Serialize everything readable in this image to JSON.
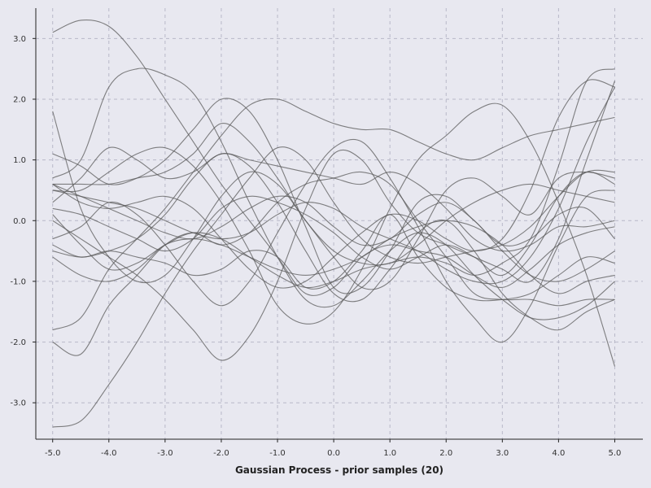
{
  "chart_data": {
    "type": "line",
    "title": "",
    "xlabel": "Gaussian Process - prior samples (20)",
    "ylabel": "",
    "xlim": [
      -5.3,
      5.5
    ],
    "ylim": [
      -3.6,
      3.5
    ],
    "x_ticks": [
      -5,
      -4,
      -3,
      -2,
      -1,
      0,
      1,
      2,
      3,
      4,
      5
    ],
    "x_tick_labels": [
      "-5.0",
      "-4.0",
      "-3.0",
      "-2.0",
      "-1.0",
      "0.0",
      "1.0",
      "2.0",
      "3.0",
      "4.0",
      "5.0"
    ],
    "y_ticks": [
      -3,
      -2,
      -1,
      0,
      1,
      2,
      3
    ],
    "y_tick_labels": [
      "-3.0",
      "-2.0",
      "-1.0",
      "0.0",
      "1.0",
      "2.0",
      "3.0"
    ],
    "grid": true,
    "legend": "none",
    "line_color": "#5a5a5a",
    "background": "#e8e8f0",
    "x": [
      -5,
      -4.5,
      -4,
      -3.5,
      -3,
      -2.5,
      -2,
      -1.5,
      -1,
      -0.5,
      0,
      0.5,
      1,
      1.5,
      2,
      2.5,
      3,
      3.5,
      4,
      4.5,
      5
    ],
    "series": [
      {
        "values": [
          3.1,
          3.3,
          3.2,
          2.7,
          2.0,
          1.3,
          0.6,
          0.0,
          -0.6,
          -1.2,
          -1.1,
          -0.6,
          -0.4,
          -0.5,
          -0.6,
          -0.9,
          -1.1,
          -0.8,
          -0.4,
          -0.2,
          -0.1
        ]
      },
      {
        "values": [
          -3.4,
          -3.3,
          -2.7,
          -2.0,
          -1.2,
          -0.5,
          0.1,
          0.7,
          1.2,
          1.0,
          0.3,
          -0.3,
          -0.6,
          -0.7,
          -0.6,
          -0.5,
          -0.4,
          -0.1,
          0.4,
          0.8,
          0.8
        ]
      },
      {
        "values": [
          -2.0,
          -2.2,
          -1.4,
          -0.9,
          -0.4,
          -0.2,
          -0.4,
          -0.2,
          0.3,
          0.6,
          0.7,
          0.8,
          0.6,
          0.0,
          -0.6,
          -1.2,
          -1.3,
          -1.3,
          -1.4,
          -1.3,
          -1.3
        ]
      },
      {
        "values": [
          -1.8,
          -1.6,
          -0.8,
          -0.3,
          0.2,
          0.8,
          1.4,
          1.9,
          2.0,
          1.8,
          1.6,
          1.5,
          1.5,
          1.3,
          1.1,
          1.0,
          1.2,
          1.4,
          1.5,
          1.6,
          1.7
        ]
      },
      {
        "values": [
          1.8,
          0.2,
          -0.6,
          -1.0,
          -0.9,
          -0.3,
          0.4,
          0.8,
          0.6,
          0.0,
          -0.6,
          -1.1,
          -1.0,
          -0.3,
          0.5,
          0.7,
          0.4,
          0.1,
          0.7,
          0.8,
          0.7
        ]
      },
      {
        "values": [
          0.7,
          1.0,
          2.2,
          2.5,
          2.4,
          2.1,
          1.3,
          0.3,
          -0.6,
          -1.3,
          -1.4,
          -1.0,
          -0.5,
          -0.2,
          -0.4,
          -0.9,
          -1.3,
          -1.6,
          -1.6,
          -1.4,
          -1.0
        ]
      },
      {
        "values": [
          1.1,
          0.9,
          0.6,
          0.7,
          1.0,
          1.5,
          2.0,
          1.8,
          1.0,
          -0.1,
          -1.1,
          -1.1,
          -0.5,
          0.3,
          0.4,
          0.0,
          -0.4,
          -0.3,
          0.1,
          0.2,
          -0.3
        ]
      },
      {
        "values": [
          0.5,
          0.5,
          0.8,
          1.1,
          1.2,
          0.9,
          0.3,
          -0.5,
          -1.4,
          -1.7,
          -1.5,
          -0.8,
          0.2,
          1.0,
          1.4,
          1.8,
          1.9,
          1.3,
          0.3,
          -0.9,
          -2.4
        ]
      },
      {
        "values": [
          0.0,
          -0.3,
          -0.6,
          -0.9,
          -1.3,
          -1.8,
          -2.3,
          -1.9,
          -1.0,
          0.2,
          1.1,
          1.0,
          0.3,
          -0.2,
          -0.4,
          -0.6,
          -0.8,
          -1.0,
          -0.3,
          1.0,
          2.3
        ]
      },
      {
        "values": [
          0.3,
          0.7,
          1.2,
          1.0,
          0.7,
          0.8,
          1.1,
          1.0,
          0.9,
          0.8,
          0.7,
          0.6,
          0.8,
          0.6,
          0.2,
          -0.3,
          -0.5,
          -0.4,
          -0.1,
          -0.1,
          0.0
        ]
      },
      {
        "values": [
          -0.4,
          -0.6,
          -0.5,
          -0.6,
          -0.7,
          -0.9,
          -0.8,
          -0.5,
          -0.6,
          -1.1,
          -1.0,
          -0.5,
          0.1,
          -0.6,
          -1.1,
          -1.3,
          -1.3,
          -1.2,
          -0.9,
          -0.6,
          -0.7
        ]
      },
      {
        "values": [
          0.6,
          0.6,
          0.6,
          0.7,
          0.8,
          1.1,
          1.6,
          1.3,
          0.7,
          0.0,
          -0.5,
          -0.7,
          -0.7,
          -0.4,
          0.0,
          0.3,
          0.5,
          0.6,
          0.5,
          0.4,
          0.3
        ]
      },
      {
        "values": [
          -0.3,
          -0.1,
          0.3,
          0.1,
          -0.4,
          -1.0,
          -1.4,
          -1.0,
          -0.2,
          0.6,
          1.2,
          1.3,
          0.7,
          -0.1,
          -1.0,
          -1.6,
          -2.0,
          -1.4,
          -0.4,
          0.4,
          0.5
        ]
      },
      {
        "values": [
          0.2,
          0.1,
          -0.1,
          -0.3,
          -0.5,
          -0.3,
          0.2,
          0.4,
          0.3,
          0.1,
          -0.2,
          -0.6,
          -0.8,
          -0.6,
          -0.4,
          -0.6,
          -0.9,
          -0.4,
          0.4,
          0.8,
          0.6
        ]
      },
      {
        "values": [
          0.6,
          0.4,
          0.2,
          0.0,
          -0.2,
          -0.3,
          -0.1,
          0.2,
          0.4,
          0.3,
          -0.1,
          -0.4,
          -0.3,
          0.1,
          0.3,
          0.0,
          -0.5,
          -0.9,
          -1.0,
          -0.8,
          -0.5
        ]
      },
      {
        "values": [
          -0.6,
          -0.9,
          -1.0,
          -0.8,
          -0.4,
          -0.3,
          -0.4,
          -0.6,
          -0.8,
          -0.9,
          -0.8,
          -0.6,
          -0.3,
          -0.1,
          0.0,
          -0.1,
          -0.4,
          -0.9,
          -1.2,
          -1.0,
          -0.9
        ]
      },
      {
        "values": [
          0.5,
          0.4,
          0.3,
          0.2,
          0.0,
          -0.2,
          -0.3,
          -0.2,
          0.1,
          0.3,
          0.2,
          -0.1,
          -0.3,
          -0.5,
          -0.8,
          -1.0,
          -1.0,
          -0.6,
          0.2,
          1.3,
          2.2
        ]
      },
      {
        "values": [
          0.1,
          -0.4,
          -0.8,
          -0.7,
          -0.4,
          -0.2,
          -0.3,
          -0.6,
          -0.9,
          -1.1,
          -1.0,
          -0.8,
          -0.7,
          -0.6,
          -0.7,
          -0.9,
          -0.7,
          -0.3,
          0.9,
          2.3,
          2.5
        ]
      },
      {
        "values": [
          -0.5,
          -0.6,
          -0.5,
          -0.3,
          0.1,
          0.7,
          1.1,
          0.9,
          0.3,
          -0.5,
          -1.2,
          -1.3,
          -0.8,
          -0.2,
          0.0,
          -0.5,
          -1.2,
          -1.6,
          -1.8,
          -1.5,
          -1.3
        ]
      },
      {
        "values": [
          0.6,
          0.3,
          0.2,
          0.3,
          0.4,
          0.2,
          -0.3,
          -0.8,
          -1.1,
          -1.0,
          -0.6,
          -0.2,
          0.1,
          0.0,
          -0.3,
          -0.5,
          -0.3,
          0.5,
          1.7,
          2.3,
          2.2
        ]
      }
    ]
  }
}
